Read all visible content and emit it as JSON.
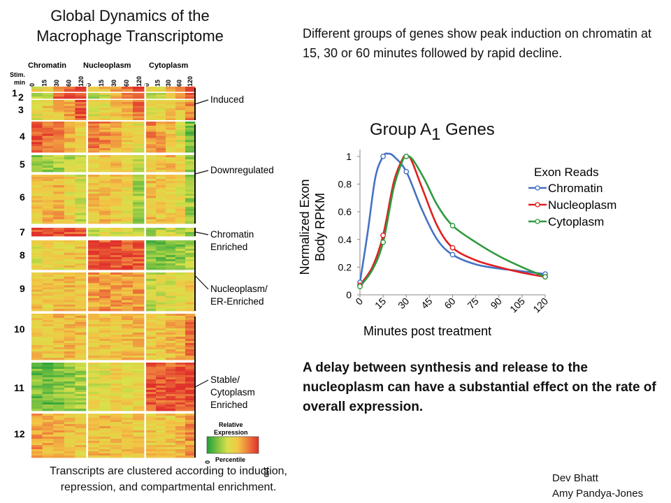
{
  "left": {
    "title_line1": "Global Dynamics of the",
    "title_line2": "Macrophage Transcriptome",
    "compartments": [
      "Chromatin",
      "Nucleoplasm",
      "Cytoplasm"
    ],
    "stim_label_line1": "Stim.",
    "stim_label_line2": "min",
    "time_ticks": [
      "0",
      "15",
      "30",
      "60",
      "120"
    ],
    "cluster_numbers": [
      "1",
      "2",
      "3",
      "4",
      "5",
      "6",
      "7",
      "8",
      "9",
      "10",
      "11",
      "12"
    ],
    "group_labels": [
      {
        "lines": [
          "Induced"
        ]
      },
      {
        "lines": [
          "Downregulated"
        ]
      },
      {
        "lines": [
          "Chromatin",
          "Enriched"
        ]
      },
      {
        "lines": [
          "Nucleoplasm/",
          "ER-Enriched"
        ]
      },
      {
        "lines": [
          "Stable/",
          "Cytoplasm",
          "Enriched"
        ]
      }
    ],
    "legend": {
      "title_line1": "Relative",
      "title_line2": "Expression",
      "min": "0",
      "max": "100",
      "label": "Percentile",
      "colors": [
        "#1e9e3a",
        "#7cc242",
        "#d9e04a",
        "#f2c545",
        "#ee7a3c",
        "#e0312b"
      ]
    },
    "caption_line1": "Transcripts are clustered according to induction,",
    "caption_line2": "repression, and compartmental enrichment."
  },
  "right": {
    "intro": "Different groups of genes show peak induction on chromatin at 15, 30 or 60 minutes followed by rapid decline.",
    "chart_title_main": "Group A",
    "chart_title_sub": "1",
    "chart_title_rest": " Genes",
    "conclusion": "A delay between synthesis and release to the nucleoplasm can have a substantial effect on the rate of overall expression."
  },
  "credits": {
    "line1": "Dev Bhatt",
    "line2": "Amy Pandya-Jones"
  },
  "chart_data": {
    "type": "line",
    "title": "Group A1 Genes",
    "xlabel": "Minutes post treatment",
    "ylabel_line1": "Normalized Exon",
    "ylabel_line2": "Body RPKM",
    "xlim": [
      0,
      120
    ],
    "ylim": [
      0,
      1.05
    ],
    "xticks": [
      0,
      15,
      30,
      45,
      60,
      75,
      90,
      105,
      120
    ],
    "yticks": [
      0,
      0.2,
      0.4,
      0.6,
      0.8,
      1
    ],
    "ytick_labels": [
      "0",
      "0.2",
      "0.4",
      "0.6",
      "0.8",
      "1"
    ],
    "legend_title": "Exon Reads",
    "series": [
      {
        "name": "Chromatin",
        "color": "#4472c4",
        "points": [
          [
            0,
            0.09
          ],
          [
            15,
            1.0
          ],
          [
            30,
            0.89
          ],
          [
            60,
            0.29
          ],
          [
            120,
            0.15
          ]
        ],
        "curve": [
          [
            0,
            0.09
          ],
          [
            5,
            0.45
          ],
          [
            10,
            0.85
          ],
          [
            15,
            1.0
          ],
          [
            18,
            1.02
          ],
          [
            22,
            1.0
          ],
          [
            30,
            0.89
          ],
          [
            40,
            0.62
          ],
          [
            50,
            0.4
          ],
          [
            60,
            0.29
          ],
          [
            75,
            0.22
          ],
          [
            90,
            0.19
          ],
          [
            105,
            0.17
          ],
          [
            120,
            0.15
          ]
        ]
      },
      {
        "name": "Nucleoplasm",
        "color": "#e02020",
        "points": [
          [
            0,
            0.07
          ],
          [
            15,
            0.43
          ],
          [
            30,
            1.0
          ],
          [
            60,
            0.34
          ],
          [
            120,
            0.13
          ]
        ],
        "curve": [
          [
            0,
            0.07
          ],
          [
            8,
            0.2
          ],
          [
            15,
            0.43
          ],
          [
            22,
            0.82
          ],
          [
            28,
            0.99
          ],
          [
            30,
            1.0
          ],
          [
            33,
            0.98
          ],
          [
            40,
            0.78
          ],
          [
            50,
            0.5
          ],
          [
            60,
            0.34
          ],
          [
            75,
            0.25
          ],
          [
            90,
            0.2
          ],
          [
            105,
            0.16
          ],
          [
            120,
            0.13
          ]
        ]
      },
      {
        "name": "Cytoplasm",
        "color": "#2e9a3e",
        "points": [
          [
            0,
            0.06
          ],
          [
            15,
            0.38
          ],
          [
            30,
            1.0
          ],
          [
            60,
            0.5
          ],
          [
            120,
            0.13
          ]
        ],
        "curve": [
          [
            0,
            0.06
          ],
          [
            8,
            0.18
          ],
          [
            15,
            0.38
          ],
          [
            22,
            0.78
          ],
          [
            28,
            0.98
          ],
          [
            30,
            1.0
          ],
          [
            34,
            0.98
          ],
          [
            42,
            0.83
          ],
          [
            50,
            0.65
          ],
          [
            60,
            0.5
          ],
          [
            75,
            0.38
          ],
          [
            90,
            0.28
          ],
          [
            105,
            0.2
          ],
          [
            120,
            0.13
          ]
        ]
      }
    ]
  }
}
